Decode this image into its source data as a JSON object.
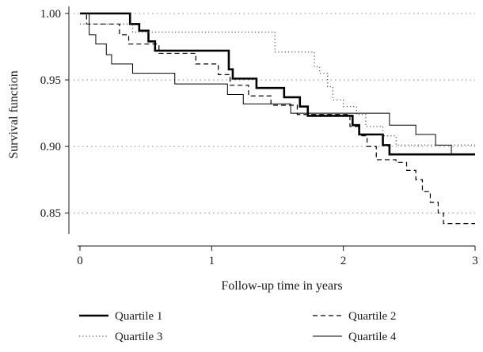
{
  "chart_data": {
    "type": "line",
    "step": true,
    "title": "",
    "xlabel": "Follow-up time in years",
    "ylabel": "Survival function",
    "xlim": [
      0,
      3
    ],
    "ylim": [
      0.84,
      1.0
    ],
    "x_ticks": [
      "0",
      "1",
      "2",
      "3"
    ],
    "y_ticks": [
      "1.00",
      "0.95",
      "0.90",
      "0.85"
    ],
    "grid": "horizontal-dotted",
    "legend_position": "bottom",
    "series": [
      {
        "name": "Quartile 1",
        "style": "thick-solid",
        "color": "#000000",
        "x": [
          0,
          0.38,
          0.45,
          0.52,
          0.57,
          1.13,
          1.16,
          1.23,
          1.34,
          1.55,
          1.67,
          1.73,
          2.07,
          2.12,
          2.3,
          2.35,
          3.0
        ],
        "y": [
          1.0,
          0.992,
          0.987,
          0.979,
          0.972,
          0.958,
          0.951,
          0.951,
          0.944,
          0.937,
          0.93,
          0.923,
          0.916,
          0.909,
          0.901,
          0.894,
          0.894
        ]
      },
      {
        "name": "Quartile 2",
        "style": "dashed",
        "color": "#000000",
        "x": [
          0,
          0.05,
          0.3,
          0.37,
          0.47,
          0.6,
          0.88,
          1.05,
          1.14,
          1.18,
          1.28,
          1.45,
          1.65,
          1.75,
          2.0,
          2.05,
          2.12,
          2.18,
          2.25,
          2.35,
          2.4,
          2.48,
          2.55,
          2.6,
          2.66,
          2.72,
          2.76,
          2.82,
          3.0
        ],
        "y": [
          1.0,
          0.992,
          0.984,
          0.977,
          0.977,
          0.97,
          0.962,
          0.954,
          0.946,
          0.946,
          0.938,
          0.931,
          0.924,
          0.924,
          0.924,
          0.915,
          0.908,
          0.9,
          0.89,
          0.89,
          0.888,
          0.882,
          0.875,
          0.866,
          0.858,
          0.85,
          0.842,
          0.842,
          0.842
        ]
      },
      {
        "name": "Quartile 3",
        "style": "dotted",
        "color": "#555555",
        "x": [
          0,
          0.3,
          0.4,
          0.45,
          1.08,
          1.48,
          1.55,
          1.7,
          1.78,
          1.82,
          1.88,
          1.92,
          2.0,
          2.1,
          2.17,
          2.3,
          2.4,
          2.8,
          3.0
        ],
        "y": [
          0.992,
          0.992,
          0.986,
          0.986,
          0.986,
          0.971,
          0.971,
          0.971,
          0.96,
          0.955,
          0.945,
          0.935,
          0.93,
          0.924,
          0.915,
          0.908,
          0.901,
          0.901,
          0.901
        ]
      },
      {
        "name": "Quartile 4",
        "style": "solid",
        "color": "#000000",
        "x": [
          0,
          0.07,
          0.12,
          0.2,
          0.24,
          0.4,
          0.72,
          1.12,
          1.24,
          1.45,
          1.6,
          2.0,
          2.35,
          2.55,
          2.7,
          2.82,
          3.0
        ],
        "y": [
          1.0,
          0.984,
          0.977,
          0.969,
          0.962,
          0.955,
          0.947,
          0.939,
          0.932,
          0.932,
          0.925,
          0.925,
          0.916,
          0.909,
          0.901,
          0.894,
          0.894
        ]
      }
    ]
  }
}
